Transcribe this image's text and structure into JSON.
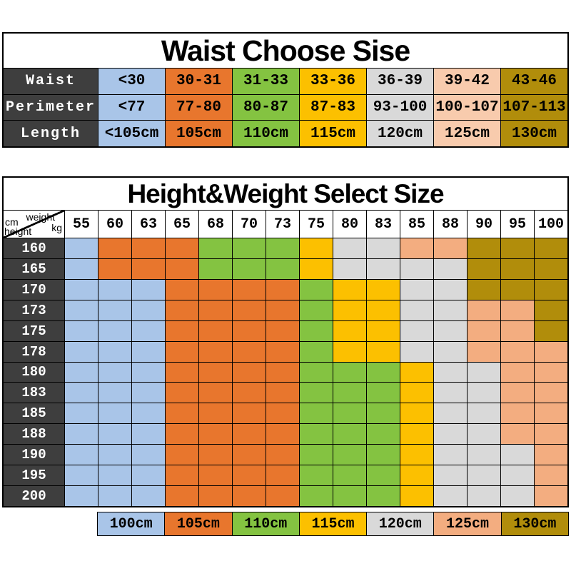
{
  "colors": {
    "header_dark": "#3e3e3e",
    "grid": "#000000",
    "background": "#ffffff",
    "title_text": "#000000",
    "waist_table_column_colors": [
      "#a9c5e8",
      "#e8762d",
      "#84c341",
      "#fcc000",
      "#d9d9d9",
      "#f8cbad",
      "#b18d0b"
    ],
    "size_color_map": {
      "100cm": "#a9c5e8",
      "105cm": "#e8762d",
      "110cm": "#84c341",
      "115cm": "#fcc000",
      "120cm": "#d9d9d9",
      "125cm": "#f3ad80",
      "130cm": "#b18d0b"
    }
  },
  "chart_data": [
    {
      "type": "table",
      "name": "waist_choose_table",
      "title": "Waist Choose Sise",
      "rows": [
        {
          "label": "Waist",
          "values": [
            "<30",
            "30-31",
            "31-33",
            "33-36",
            "36-39",
            "39-42",
            "43-46"
          ]
        },
        {
          "label": "Perimeter",
          "values": [
            "<77",
            "77-80",
            "80-87",
            "87-83",
            "93-100",
            "100-107",
            "107-113"
          ]
        },
        {
          "label": "Length",
          "values": [
            "<105cm",
            "105cm",
            "110cm",
            "115cm",
            "120cm",
            "125cm",
            "130cm"
          ]
        }
      ]
    },
    {
      "type": "heatmap",
      "name": "height_weight_table",
      "title": "Height&Weight Select Size",
      "corner_labels": {
        "row_unit": "cm",
        "row_axis": "height",
        "col_axis": "weight",
        "col_unit": "kg"
      },
      "weight_headers": [
        "55",
        "60",
        "63",
        "65",
        "68",
        "70",
        "73",
        "75",
        "80",
        "83",
        "85",
        "88",
        "90",
        "95",
        "100"
      ],
      "rows": [
        {
          "height": "160",
          "sizes": [
            "100cm",
            "105cm",
            "105cm",
            "105cm",
            "110cm",
            "110cm",
            "110cm",
            "115cm",
            "120cm",
            "120cm",
            "125cm",
            "125cm",
            "130cm",
            "130cm",
            "130cm"
          ]
        },
        {
          "height": "165",
          "sizes": [
            "100cm",
            "105cm",
            "105cm",
            "105cm",
            "110cm",
            "110cm",
            "110cm",
            "115cm",
            "120cm",
            "120cm",
            "120cm",
            "120cm",
            "130cm",
            "130cm",
            "130cm"
          ]
        },
        {
          "height": "170",
          "sizes": [
            "100cm",
            "100cm",
            "100cm",
            "105cm",
            "105cm",
            "105cm",
            "105cm",
            "110cm",
            "115cm",
            "115cm",
            "120cm",
            "120cm",
            "130cm",
            "130cm",
            "130cm"
          ]
        },
        {
          "height": "173",
          "sizes": [
            "100cm",
            "100cm",
            "100cm",
            "105cm",
            "105cm",
            "105cm",
            "105cm",
            "110cm",
            "115cm",
            "115cm",
            "120cm",
            "120cm",
            "125cm",
            "125cm",
            "130cm"
          ]
        },
        {
          "height": "175",
          "sizes": [
            "100cm",
            "100cm",
            "100cm",
            "105cm",
            "105cm",
            "105cm",
            "105cm",
            "110cm",
            "115cm",
            "115cm",
            "120cm",
            "120cm",
            "125cm",
            "125cm",
            "130cm"
          ]
        },
        {
          "height": "178",
          "sizes": [
            "100cm",
            "100cm",
            "100cm",
            "105cm",
            "105cm",
            "105cm",
            "105cm",
            "110cm",
            "115cm",
            "115cm",
            "120cm",
            "120cm",
            "125cm",
            "125cm",
            "125cm"
          ]
        },
        {
          "height": "180",
          "sizes": [
            "100cm",
            "100cm",
            "100cm",
            "105cm",
            "105cm",
            "105cm",
            "105cm",
            "110cm",
            "110cm",
            "110cm",
            "115cm",
            "120cm",
            "120cm",
            "125cm",
            "125cm"
          ]
        },
        {
          "height": "183",
          "sizes": [
            "100cm",
            "100cm",
            "100cm",
            "105cm",
            "105cm",
            "105cm",
            "105cm",
            "110cm",
            "110cm",
            "110cm",
            "115cm",
            "120cm",
            "120cm",
            "125cm",
            "125cm"
          ]
        },
        {
          "height": "185",
          "sizes": [
            "100cm",
            "100cm",
            "100cm",
            "105cm",
            "105cm",
            "105cm",
            "105cm",
            "110cm",
            "110cm",
            "110cm",
            "115cm",
            "120cm",
            "120cm",
            "125cm",
            "125cm"
          ]
        },
        {
          "height": "188",
          "sizes": [
            "100cm",
            "100cm",
            "100cm",
            "105cm",
            "105cm",
            "105cm",
            "105cm",
            "110cm",
            "110cm",
            "110cm",
            "115cm",
            "120cm",
            "120cm",
            "125cm",
            "125cm"
          ]
        },
        {
          "height": "190",
          "sizes": [
            "100cm",
            "100cm",
            "100cm",
            "105cm",
            "105cm",
            "105cm",
            "105cm",
            "110cm",
            "110cm",
            "110cm",
            "115cm",
            "120cm",
            "120cm",
            "120cm",
            "125cm"
          ]
        },
        {
          "height": "195",
          "sizes": [
            "100cm",
            "100cm",
            "100cm",
            "105cm",
            "105cm",
            "105cm",
            "105cm",
            "110cm",
            "110cm",
            "110cm",
            "115cm",
            "120cm",
            "120cm",
            "120cm",
            "125cm"
          ]
        },
        {
          "height": "200",
          "sizes": [
            "100cm",
            "100cm",
            "100cm",
            "105cm",
            "105cm",
            "105cm",
            "105cm",
            "110cm",
            "110cm",
            "110cm",
            "115cm",
            "120cm",
            "120cm",
            "120cm",
            "125cm"
          ]
        }
      ]
    },
    {
      "type": "legend",
      "name": "size_color_legend",
      "items": [
        "100cm",
        "105cm",
        "110cm",
        "115cm",
        "120cm",
        "125cm",
        "130cm"
      ]
    }
  ]
}
